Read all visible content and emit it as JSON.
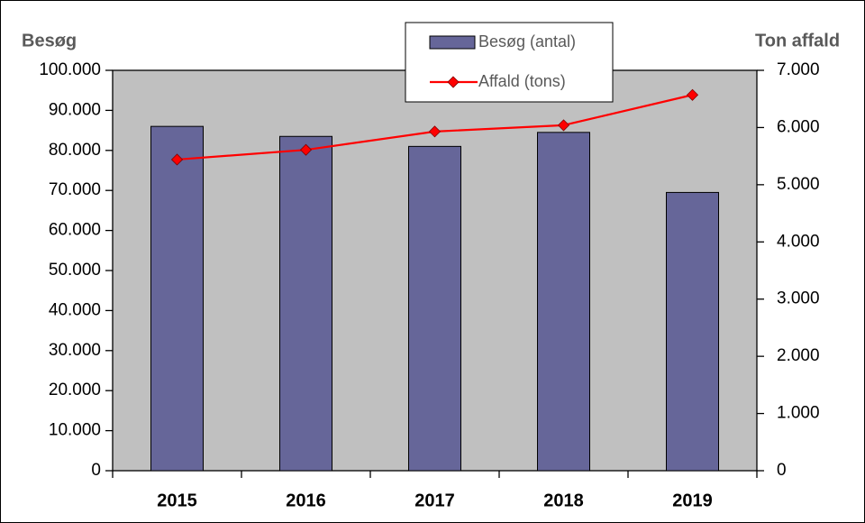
{
  "chart_data": {
    "type": "bar",
    "y_axis_title": "Besøg",
    "y2_axis_title": "Ton affald",
    "categories": [
      "2015",
      "2016",
      "2017",
      "2018",
      "2019"
    ],
    "series": [
      {
        "name": "Besøg (antal)",
        "color": "#666699",
        "type": "bar",
        "values": [
          86000,
          83500,
          81000,
          84500,
          69500
        ]
      },
      {
        "name": "Affald (tons)",
        "color": "#ff0000",
        "type": "line",
        "axis": "y2",
        "values": [
          5440,
          5610,
          5930,
          6040,
          6570
        ]
      }
    ],
    "ylim": [
      0,
      100000
    ],
    "yticks": [
      0,
      {
        "value": 10000,
        "label": "10.000"
      },
      {
        "value": 20000,
        "label": "20.000"
      },
      {
        "value": 30000,
        "label": "30.000"
      },
      {
        "value": 40000,
        "label": "40.000"
      },
      {
        "value": 50000,
        "label": "50.000"
      },
      {
        "value": 60000,
        "label": "60.000"
      },
      {
        "value": 70000,
        "label": "70.000"
      },
      {
        "value": 80000,
        "label": "80.000"
      },
      {
        "value": 90000,
        "label": "90.000"
      },
      {
        "value": 100000,
        "label": "100.000"
      }
    ],
    "y2lim": [
      0,
      7000
    ],
    "y2ticks": [
      0,
      {
        "value": 1000,
        "label": "1.000"
      },
      {
        "value": 2000,
        "label": "2.000"
      },
      {
        "value": 3000,
        "label": "3.000"
      },
      {
        "value": 4000,
        "label": "4.000"
      },
      {
        "value": 5000,
        "label": "5.000"
      },
      {
        "value": 6000,
        "label": "6.000"
      },
      {
        "value": 7000,
        "label": "7.000"
      }
    ],
    "plot_background": "#c0c0c0"
  }
}
